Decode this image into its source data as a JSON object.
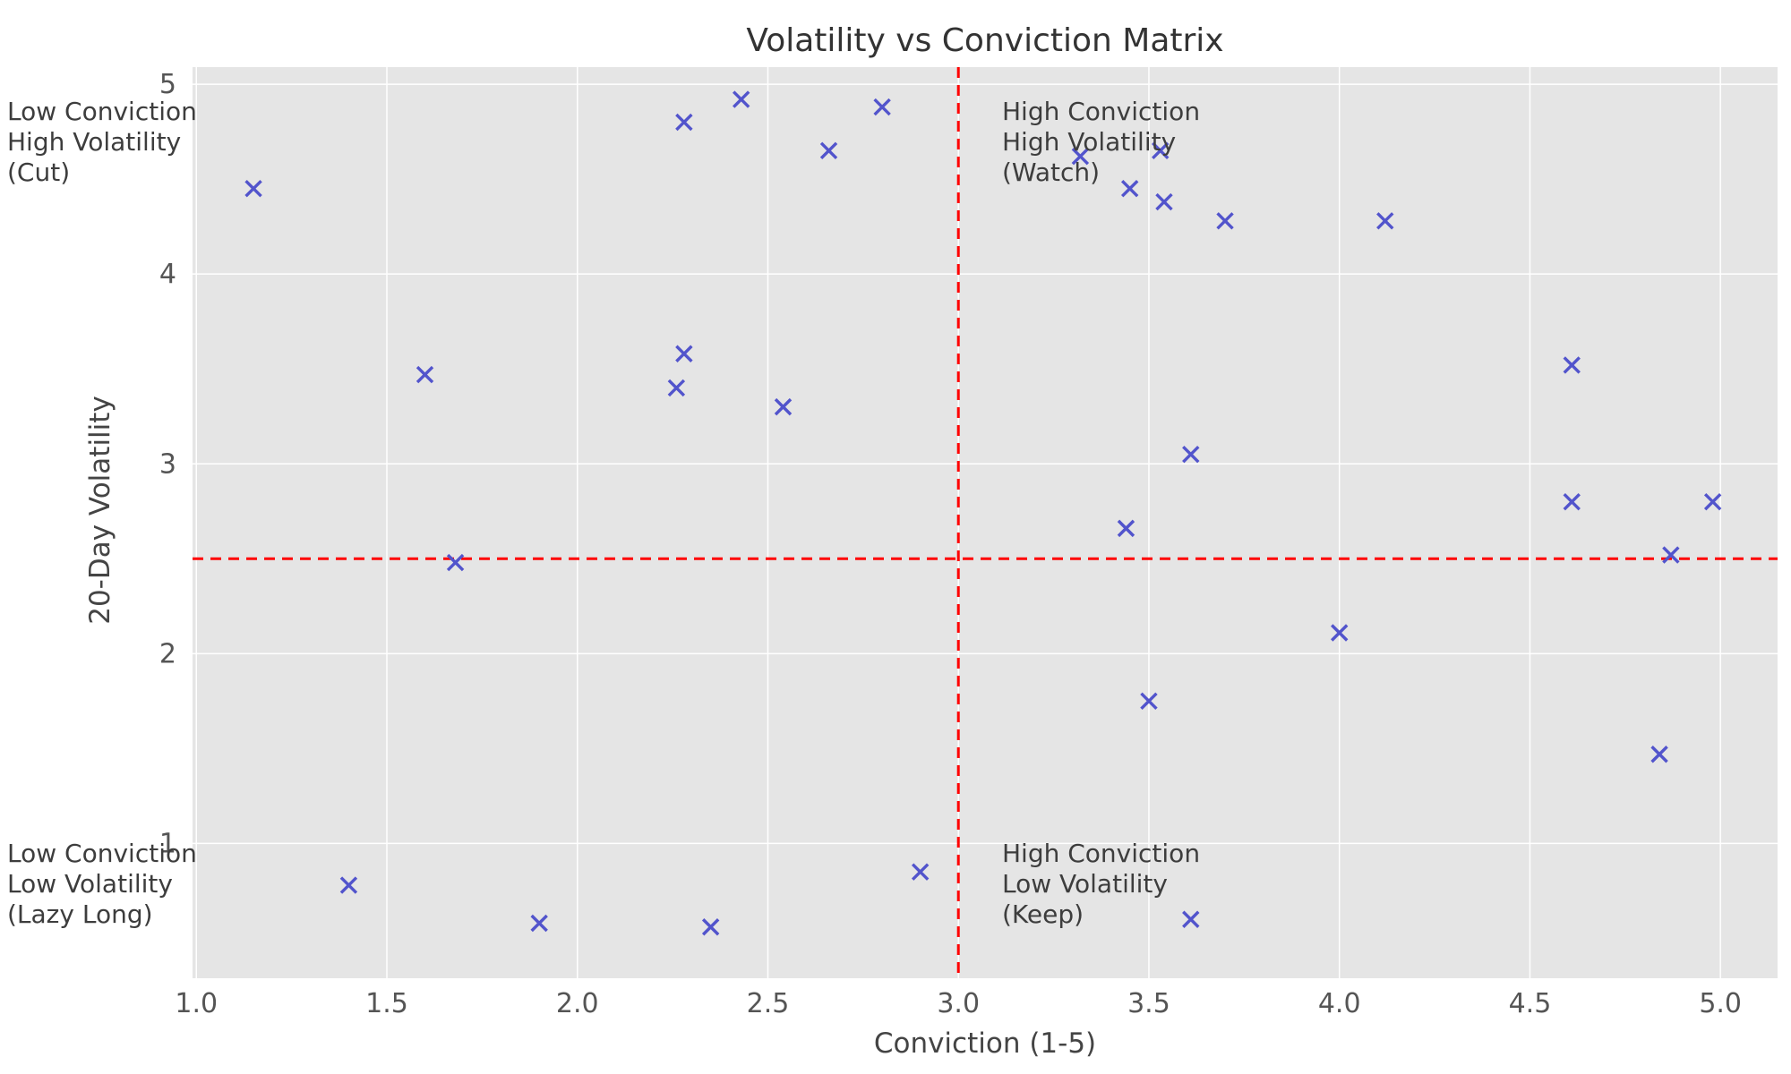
{
  "chart_data": {
    "type": "scatter",
    "title": "Volatility vs Conviction Matrix",
    "xlabel": "Conviction (1-5)",
    "ylabel": "20-Day Volatility",
    "xlim": [
      0.99,
      5.15
    ],
    "ylim": [
      0.29,
      5.09
    ],
    "x_ticks": [
      1.0,
      1.5,
      2.0,
      2.5,
      3.0,
      3.5,
      4.0,
      4.5,
      5.0
    ],
    "x_tick_labels": [
      "1.0",
      "1.5",
      "2.0",
      "2.5",
      "3.0",
      "3.5",
      "4.0",
      "4.5",
      "5.0"
    ],
    "y_ticks": [
      1,
      2,
      3,
      4,
      5
    ],
    "y_tick_labels": [
      "1",
      "2",
      "3",
      "4",
      "5"
    ],
    "grid": true,
    "legend": "none",
    "plot_background": "#e5e5e5",
    "grid_color": "#ffffff",
    "marker": "x",
    "marker_color": "#5254cc",
    "threshold_x": 3.0,
    "threshold_y": 2.5,
    "threshold_color": "#ff0000",
    "threshold_style": "dashed",
    "points": [
      [
        1.15,
        4.45
      ],
      [
        1.4,
        0.78
      ],
      [
        1.6,
        3.47
      ],
      [
        1.68,
        2.48
      ],
      [
        1.9,
        0.58
      ],
      [
        2.26,
        3.4
      ],
      [
        2.28,
        3.58
      ],
      [
        2.28,
        4.8
      ],
      [
        2.35,
        0.56
      ],
      [
        2.43,
        4.92
      ],
      [
        2.54,
        3.3
      ],
      [
        2.66,
        4.65
      ],
      [
        2.8,
        4.88
      ],
      [
        2.9,
        0.85
      ],
      [
        3.32,
        4.62
      ],
      [
        3.44,
        2.66
      ],
      [
        3.45,
        4.45
      ],
      [
        3.5,
        1.75
      ],
      [
        3.53,
        4.65
      ],
      [
        3.54,
        4.38
      ],
      [
        3.61,
        3.05
      ],
      [
        3.61,
        0.6
      ],
      [
        3.7,
        4.28
      ],
      [
        4.0,
        2.11
      ],
      [
        4.12,
        4.28
      ],
      [
        4.61,
        3.52
      ],
      [
        4.61,
        2.8
      ],
      [
        4.84,
        1.47
      ],
      [
        4.87,
        2.52
      ],
      [
        4.98,
        2.8
      ]
    ],
    "quadrants": [
      {
        "name": "top-left",
        "lines": [
          "Low Conviction",
          "High Volatility",
          "(Cut)"
        ]
      },
      {
        "name": "top-right",
        "lines": [
          "High Conviction",
          "High Volatility",
          "(Watch)"
        ]
      },
      {
        "name": "bottom-left",
        "lines": [
          "Low Conviction",
          "Low Volatility",
          "(Lazy Long)"
        ]
      },
      {
        "name": "bottom-right",
        "lines": [
          "High Conviction",
          "Low Volatility",
          "(Keep)"
        ]
      }
    ]
  }
}
